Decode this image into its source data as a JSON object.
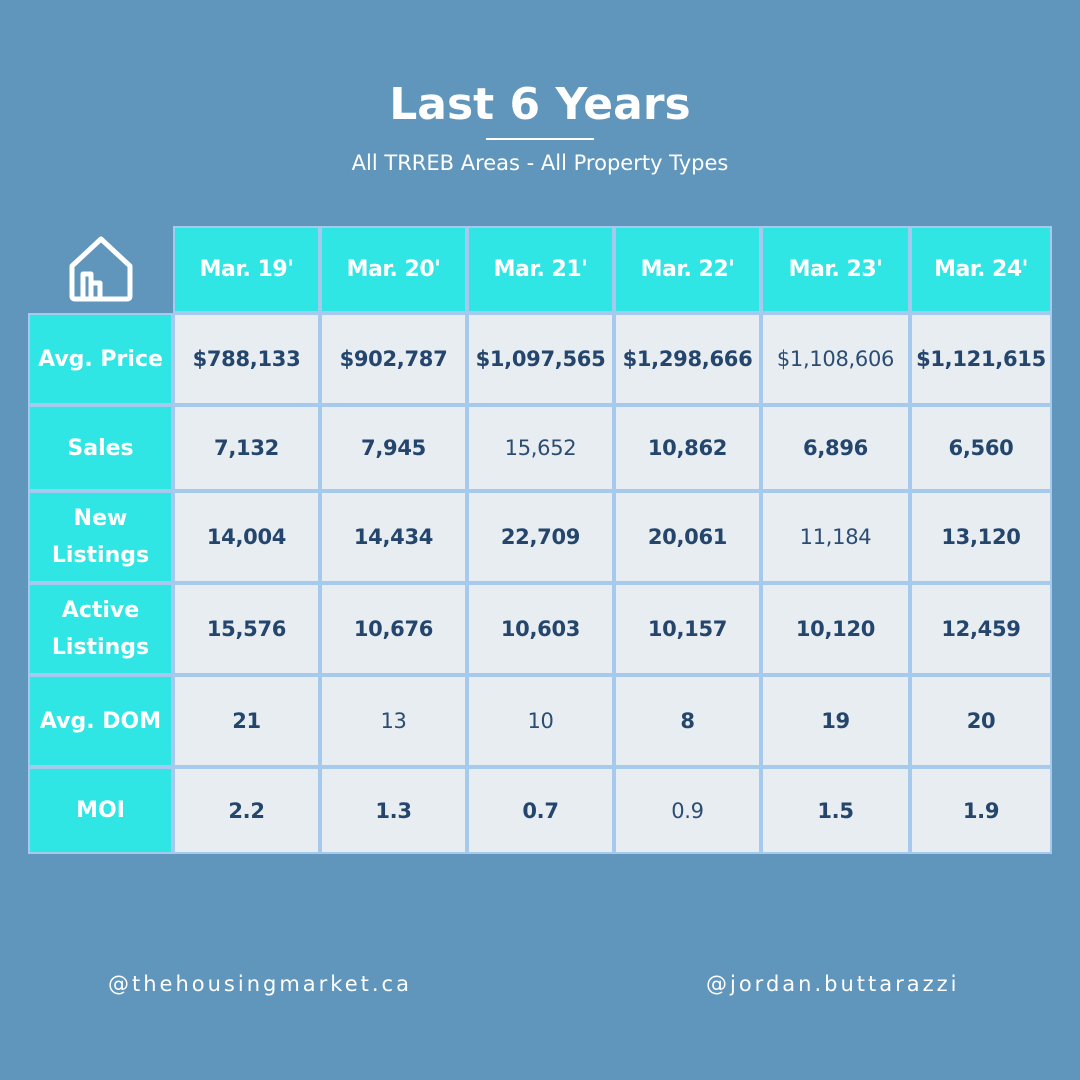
{
  "header": {
    "title": "Last 6 Years",
    "subtitle": "All TRREB Areas - All Property Types"
  },
  "logo_icon": "house-icon",
  "table": {
    "columns": [
      "Mar. 19'",
      "Mar. 20'",
      "Mar. 21'",
      "Mar. 22'",
      "Mar. 23'",
      "Mar. 24'"
    ],
    "rows": [
      {
        "label": "Avg. Price",
        "values": [
          "$788,133",
          "$902,787",
          "$1,097,565",
          "$1,298,666",
          "$1,108,606",
          "$1,121,615"
        ]
      },
      {
        "label": "Sales",
        "values": [
          "7,132",
          "7,945",
          "15,652",
          "10,862",
          "6,896",
          "6,560"
        ]
      },
      {
        "label": "New Listings",
        "values": [
          "14,004",
          "14,434",
          "22,709",
          "20,061",
          "11,184",
          "13,120"
        ]
      },
      {
        "label": "Active Listings",
        "values": [
          "15,576",
          "10,676",
          "10,603",
          "10,157",
          "10,120",
          "12,459"
        ]
      },
      {
        "label": "Avg. DOM",
        "values": [
          "21",
          "13",
          "10",
          "8",
          "19",
          "20"
        ]
      },
      {
        "label": "MOI",
        "values": [
          "2.2",
          "1.3",
          "0.7",
          "0.9",
          "1.5",
          "1.9"
        ]
      }
    ]
  },
  "footer": {
    "left_handle": "@thehousingmarket.ca",
    "right_handle": "@jordan.buttarazzi"
  },
  "colors": {
    "background": "#6096bb",
    "accent_cyan": "#2fe6e4",
    "cell_background": "#e8edf1",
    "grid_line": "#a6caee",
    "value_text": "#24456c"
  }
}
